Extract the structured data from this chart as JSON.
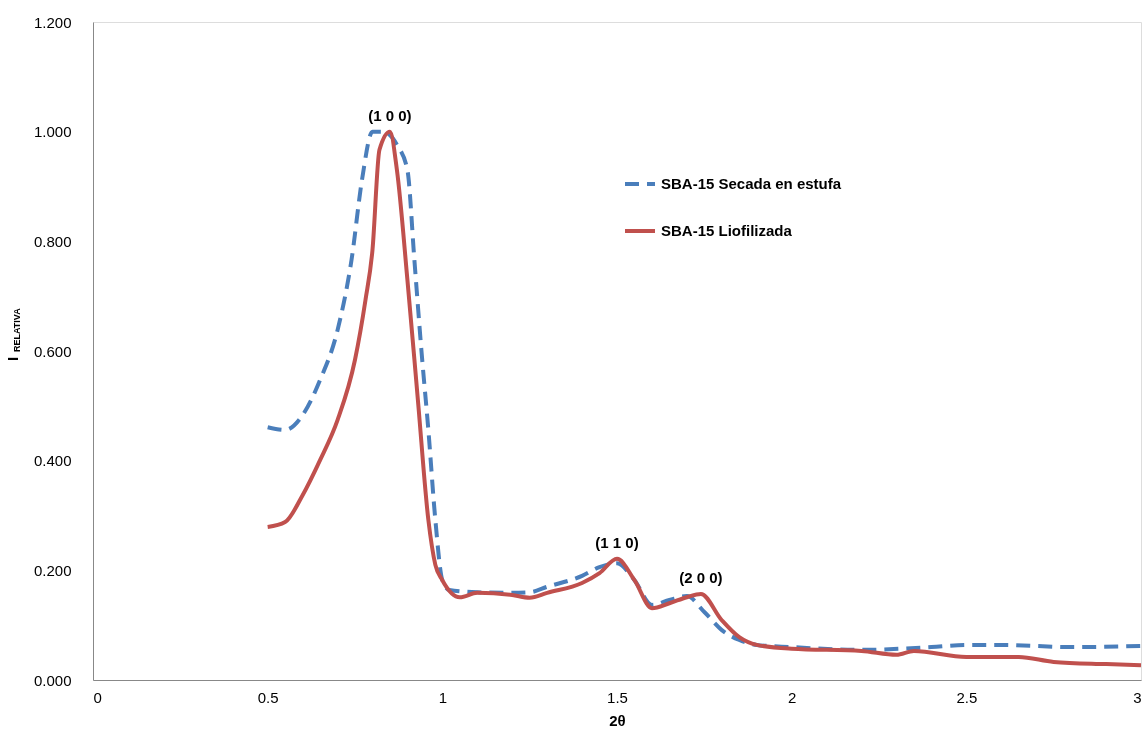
{
  "chart_data": {
    "type": "line",
    "xlabel": "2θ",
    "ylabel": "I$_{RELATIVA}$",
    "xlim": [
      0,
      3
    ],
    "xticks": [
      0,
      0.5,
      1,
      1.5,
      2,
      2.5,
      3
    ],
    "ylim": [
      0,
      1.2
    ],
    "yticks": [
      {
        "value": 0,
        "label": "0.000"
      },
      {
        "value": 0.2,
        "label": "0.200"
      },
      {
        "value": 0.4,
        "label": "0.400"
      },
      {
        "value": 0.6,
        "label": "0.600"
      },
      {
        "value": 0.8,
        "label": "0.800"
      },
      {
        "value": 1.0,
        "label": "1.000"
      },
      {
        "value": 1.2,
        "label": "1.200"
      }
    ],
    "grid": false,
    "legend": "top right",
    "marker": "none",
    "series": [
      {
        "name": "SBA-15  Secada en estufa",
        "color": "#4a7ebb",
        "line_style": "dashed",
        "x": [
          0.5,
          0.55,
          0.6,
          0.65,
          0.7,
          0.74,
          0.77,
          0.8,
          0.83,
          0.87,
          0.9,
          0.92,
          0.94,
          0.96,
          0.98,
          1.0,
          1.02,
          1.1,
          1.2,
          1.25,
          1.3,
          1.4,
          1.45,
          1.5,
          1.55,
          1.6,
          1.65,
          1.7,
          1.75,
          1.8,
          1.85,
          1.9,
          2.0,
          2.2,
          2.4,
          2.5,
          2.6,
          2.8,
          3.0
        ],
        "values": [
          0.461,
          0.456,
          0.483,
          0.547,
          0.638,
          0.766,
          0.912,
          1.0,
          1.0,
          0.976,
          0.93,
          0.766,
          0.602,
          0.456,
          0.292,
          0.182,
          0.164,
          0.16,
          0.159,
          0.16,
          0.17,
          0.19,
          0.206,
          0.213,
          0.182,
          0.137,
          0.146,
          0.153,
          0.124,
          0.091,
          0.073,
          0.064,
          0.06,
          0.055,
          0.06,
          0.064,
          0.064,
          0.06,
          0.062
        ]
      },
      {
        "name": "SBA-15  Liofilizada",
        "color": "#c0504d",
        "line_style": "solid",
        "x": [
          0.5,
          0.55,
          0.6,
          0.65,
          0.7,
          0.75,
          0.78,
          0.8,
          0.82,
          0.85,
          0.87,
          0.9,
          0.93,
          0.96,
          0.98,
          1.0,
          1.05,
          1.1,
          1.2,
          1.25,
          1.3,
          1.4,
          1.45,
          1.5,
          1.55,
          1.6,
          1.65,
          1.7,
          1.74,
          1.8,
          1.85,
          1.9,
          2.0,
          2.2,
          2.3,
          2.35,
          2.5,
          2.65,
          2.75,
          2.9,
          3.0
        ],
        "values": [
          0.279,
          0.288,
          0.337,
          0.401,
          0.474,
          0.584,
          0.693,
          0.784,
          0.967,
          1.0,
          0.93,
          0.73,
          0.511,
          0.292,
          0.21,
          0.182,
          0.151,
          0.159,
          0.155,
          0.15,
          0.159,
          0.177,
          0.195,
          0.221,
          0.182,
          0.131,
          0.14,
          0.151,
          0.157,
          0.109,
          0.078,
          0.064,
          0.057,
          0.053,
          0.046,
          0.053,
          0.042,
          0.042,
          0.033,
          0.029,
          0.027
        ]
      }
    ],
    "annotations": [
      {
        "text": "(1 0 0)",
        "x": 0.85,
        "y": 1.0
      },
      {
        "text": "(1 1 0)",
        "x": 1.5,
        "y": 0.221
      },
      {
        "text": "(2 0 0)",
        "x": 1.74,
        "y": 0.157
      }
    ]
  }
}
